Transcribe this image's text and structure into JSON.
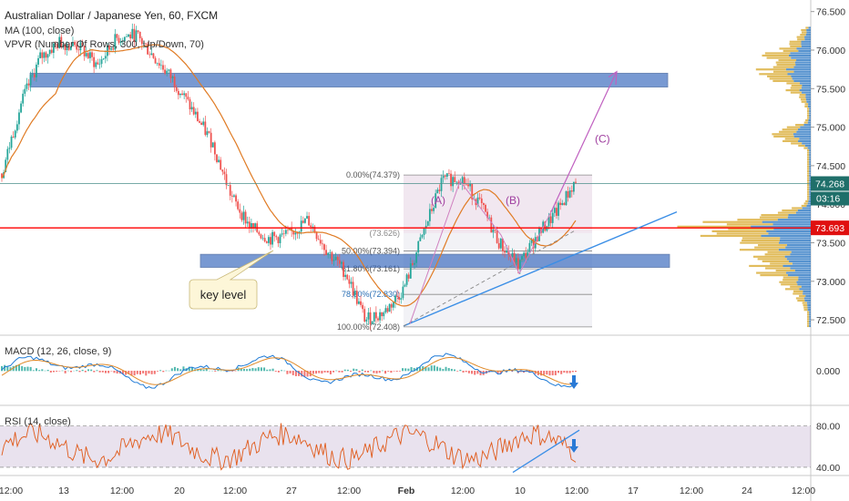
{
  "header": {
    "title": "Australian Dollar / Japanese Yen, 60, FXCM",
    "ma_label": "MA (100, close)",
    "vpvr_label": "VPVR (Number Of Rows, 300, Up/Down, 70)"
  },
  "colors": {
    "candle_up": "#26a69a",
    "candle_down": "#ef5350",
    "ma": "#e07b24",
    "zone_fill": "#3f6fc0",
    "trendline": "#3a8ee6",
    "projection": "#c060c0",
    "wave_label": "#a040a0",
    "price_line": "#ff0000",
    "fib_line": "#8a8a8a",
    "rsi_line": "#e05a1a",
    "rsi_band": "#6a3a8a",
    "macd_line": "#1e7ad6",
    "signal_line": "#e08a2a",
    "vpvr_up": "#1f6fbf",
    "vpvr_down": "#d4a017"
  },
  "chart_data": {
    "type": "candlestick",
    "symbol": "AUDJPY",
    "ylim": [
      72.3,
      76.65
    ],
    "price_ticks": [
      "76.500",
      "76.000",
      "75.500",
      "75.000",
      "74.500",
      "74.000",
      "73.500",
      "73.000",
      "72.500"
    ],
    "time_ticks": [
      "12:00",
      "13",
      "12:00",
      "20",
      "12:00",
      "27",
      "12:00",
      "Feb",
      "12:00",
      "10",
      "12:00",
      "17",
      "12:00",
      "24",
      "12:00"
    ],
    "price_series": [
      74.4,
      75.3,
      75.9,
      76.1,
      76.05,
      75.8,
      76.15,
      76.2,
      75.9,
      75.6,
      75.2,
      74.8,
      74.1,
      73.7,
      73.55,
      73.6,
      73.8,
      73.4,
      73.1,
      72.5,
      72.6,
      72.9,
      73.6,
      74.3,
      74.35,
      74.0,
      73.5,
      73.2,
      73.6,
      73.9,
      74.3
    ],
    "last_price": "73.693",
    "current_label": "74.268",
    "countdown": "03:16",
    "fib_levels": [
      {
        "label": "0.00%(74.379)",
        "value": 74.379
      },
      {
        "label": "50.00%(73.394)",
        "value": 73.394
      },
      {
        "label": "61.80%(73.161)",
        "value": 73.161
      },
      {
        "label": "78.60%(72.830)",
        "value": 72.83
      },
      {
        "label": "100.00%(72.408)",
        "value": 72.408
      }
    ],
    "fib_partial_label": "(73.626)",
    "waves": [
      "(A)",
      "(B)",
      "(C)"
    ],
    "annotation": "key level",
    "macd": {
      "label": "MACD (12, 26, close, 9)",
      "ticks": [
        "0.000"
      ]
    },
    "rsi": {
      "label": "RSI (14, close)",
      "ticks": [
        "80.00",
        "40.00"
      ]
    }
  }
}
